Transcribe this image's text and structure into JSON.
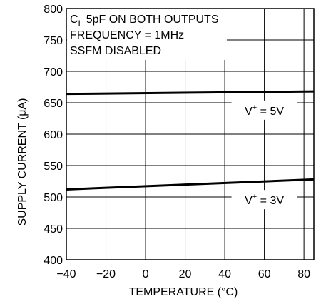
{
  "chart_data": {
    "type": "line",
    "title": "",
    "xlabel": "TEMPERATURE (°C)",
    "ylabel": "SUPPLY CURRENT (μA)",
    "xlim": [
      -40,
      85
    ],
    "ylim": [
      400,
      800
    ],
    "x_ticks": [
      "−40",
      "−20",
      "0",
      "20",
      "40",
      "60",
      "80"
    ],
    "x_tick_values": [
      -40,
      -20,
      0,
      20,
      40,
      60,
      80
    ],
    "y_ticks": [
      "400",
      "450",
      "500",
      "550",
      "600",
      "650",
      "700",
      "750",
      "800"
    ],
    "y_tick_values": [
      400,
      450,
      500,
      550,
      600,
      650,
      700,
      750,
      800
    ],
    "grid": true,
    "annotations": {
      "line1_prefix": "C",
      "line1_sub": "L",
      "line1_rest": " 5pF ON BOTH OUTPUTS",
      "line2": "FREQUENCY = 1MHz",
      "line3": "SSFM DISABLED"
    },
    "series": [
      {
        "label_prefix": "V",
        "label_sup": "+",
        "label_rest": " = 5V",
        "label_x": 60,
        "color": "#000000",
        "x": [
          -40,
          85
        ],
        "y": [
          664,
          668
        ]
      },
      {
        "label_prefix": "V",
        "label_sup": "+",
        "label_rest": " = 3V",
        "label_x": 60,
        "color": "#000000",
        "x": [
          -40,
          85
        ],
        "y": [
          512,
          528
        ]
      }
    ]
  }
}
